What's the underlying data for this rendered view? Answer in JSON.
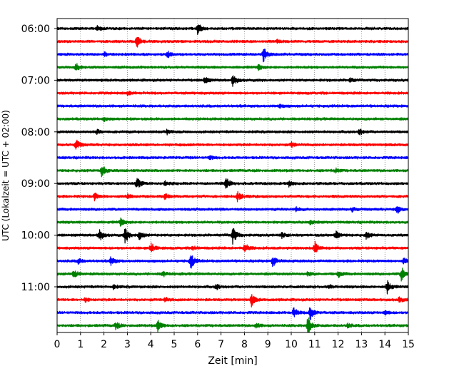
{
  "chart_data": {
    "type": "line",
    "title": "",
    "xlabel": "Zeit  [min]",
    "ylabel": "UTC (Lokalzeit = UTC + 02:00)",
    "xlim": [
      0,
      15
    ],
    "x_ticks": [
      0,
      1,
      2,
      3,
      4,
      5,
      6,
      7,
      8,
      9,
      10,
      11,
      12,
      13,
      14,
      15
    ],
    "y_tick_labels": [
      "06:00",
      "07:00",
      "08:00",
      "09:00",
      "10:00",
      "11:00"
    ],
    "grid": "vertical dotted",
    "legend": "none",
    "row_minutes": 15,
    "colors_cycle": [
      "#000000",
      "#ff0000",
      "#0000ff",
      "#008000"
    ],
    "series": [
      {
        "row": 0,
        "color": "#000000",
        "events": [
          {
            "t": 6.0,
            "amp": 9
          },
          {
            "t": 1.7,
            "amp": 3
          }
        ]
      },
      {
        "row": 1,
        "color": "#ff0000",
        "events": [
          {
            "t": 3.4,
            "amp": 9
          },
          {
            "t": 9.4,
            "amp": 3
          }
        ]
      },
      {
        "row": 2,
        "color": "#0000ff",
        "events": [
          {
            "t": 8.8,
            "amp": 11
          },
          {
            "t": 4.7,
            "amp": 5
          },
          {
            "t": 2.0,
            "amp": 3
          }
        ]
      },
      {
        "row": 3,
        "color": "#008000",
        "events": [
          {
            "t": 0.8,
            "amp": 6
          },
          {
            "t": 8.6,
            "amp": 4
          }
        ]
      },
      {
        "row": 4,
        "color": "#000000",
        "events": [
          {
            "t": 7.5,
            "amp": 9
          },
          {
            "t": 6.3,
            "amp": 5
          },
          {
            "t": 12.5,
            "amp": 3
          }
        ]
      },
      {
        "row": 5,
        "color": "#ff0000",
        "events": [
          {
            "t": 3.0,
            "amp": 3
          }
        ]
      },
      {
        "row": 6,
        "color": "#0000ff",
        "events": [
          {
            "t": 9.5,
            "amp": 3
          }
        ]
      },
      {
        "row": 7,
        "color": "#008000",
        "events": [
          {
            "t": 2.0,
            "amp": 3
          }
        ]
      },
      {
        "row": 8,
        "color": "#000000",
        "events": [
          {
            "t": 12.9,
            "amp": 5
          },
          {
            "t": 4.7,
            "amp": 4
          },
          {
            "t": 1.7,
            "amp": 3
          }
        ]
      },
      {
        "row": 9,
        "color": "#ff0000",
        "events": [
          {
            "t": 0.8,
            "amp": 9
          },
          {
            "t": 10.0,
            "amp": 4
          }
        ]
      },
      {
        "row": 10,
        "color": "#0000ff",
        "events": [
          {
            "t": 6.5,
            "amp": 3
          }
        ]
      },
      {
        "row": 11,
        "color": "#008000",
        "events": [
          {
            "t": 1.9,
            "amp": 10
          },
          {
            "t": 11.9,
            "amp": 3
          }
        ]
      },
      {
        "row": 12,
        "color": "#000000",
        "events": [
          {
            "t": 3.4,
            "amp": 10
          },
          {
            "t": 7.2,
            "amp": 10
          },
          {
            "t": 4.6,
            "amp": 3
          },
          {
            "t": 9.9,
            "amp": 4
          }
        ]
      },
      {
        "row": 13,
        "color": "#ff0000",
        "events": [
          {
            "t": 1.6,
            "amp": 6
          },
          {
            "t": 7.7,
            "amp": 7
          },
          {
            "t": 4.6,
            "amp": 4
          },
          {
            "t": 3.0,
            "amp": 3
          }
        ]
      },
      {
        "row": 14,
        "color": "#0000ff",
        "events": [
          {
            "t": 14.5,
            "amp": 7
          },
          {
            "t": 10.2,
            "amp": 3
          },
          {
            "t": 12.6,
            "amp": 3
          }
        ]
      },
      {
        "row": 15,
        "color": "#008000",
        "events": [
          {
            "t": 2.7,
            "amp": 6
          },
          {
            "t": 10.8,
            "amp": 3
          }
        ]
      },
      {
        "row": 16,
        "color": "#000000",
        "events": [
          {
            "t": 7.5,
            "amp": 13
          },
          {
            "t": 2.9,
            "amp": 12
          },
          {
            "t": 1.8,
            "amp": 9
          },
          {
            "t": 3.5,
            "amp": 7
          },
          {
            "t": 11.9,
            "amp": 6
          },
          {
            "t": 13.2,
            "amp": 5
          },
          {
            "t": 9.6,
            "amp": 4
          }
        ]
      },
      {
        "row": 17,
        "color": "#ff0000",
        "events": [
          {
            "t": 11.0,
            "amp": 10
          },
          {
            "t": 4.0,
            "amp": 8
          },
          {
            "t": 8.0,
            "amp": 8
          },
          {
            "t": 5.8,
            "amp": 3
          }
        ]
      },
      {
        "row": 18,
        "color": "#0000ff",
        "events": [
          {
            "t": 5.7,
            "amp": 12
          },
          {
            "t": 9.2,
            "amp": 9
          },
          {
            "t": 2.3,
            "amp": 7
          },
          {
            "t": 0.9,
            "amp": 4
          },
          {
            "t": 14.8,
            "amp": 4
          }
        ]
      },
      {
        "row": 19,
        "color": "#008000",
        "events": [
          {
            "t": 14.7,
            "amp": 10
          },
          {
            "t": 0.7,
            "amp": 6
          },
          {
            "t": 12.0,
            "amp": 5
          },
          {
            "t": 4.5,
            "amp": 4
          },
          {
            "t": 10.7,
            "amp": 3
          }
        ]
      },
      {
        "row": 20,
        "color": "#000000",
        "events": [
          {
            "t": 14.1,
            "amp": 9
          },
          {
            "t": 6.8,
            "amp": 4
          },
          {
            "t": 2.4,
            "amp": 3
          },
          {
            "t": 11.6,
            "amp": 3
          }
        ]
      },
      {
        "row": 21,
        "color": "#ff0000",
        "events": [
          {
            "t": 8.3,
            "amp": 9
          },
          {
            "t": 14.6,
            "amp": 4
          },
          {
            "t": 1.2,
            "amp": 3
          },
          {
            "t": 4.6,
            "amp": 3
          }
        ]
      },
      {
        "row": 22,
        "color": "#0000ff",
        "events": [
          {
            "t": 10.1,
            "amp": 8
          },
          {
            "t": 10.8,
            "amp": 12
          },
          {
            "t": 14.0,
            "amp": 3
          }
        ]
      },
      {
        "row": 23,
        "color": "#008000",
        "events": [
          {
            "t": 10.7,
            "amp": 15
          },
          {
            "t": 4.3,
            "amp": 9
          },
          {
            "t": 2.5,
            "amp": 6
          },
          {
            "t": 8.5,
            "amp": 4
          },
          {
            "t": 12.4,
            "amp": 3
          }
        ]
      }
    ]
  }
}
